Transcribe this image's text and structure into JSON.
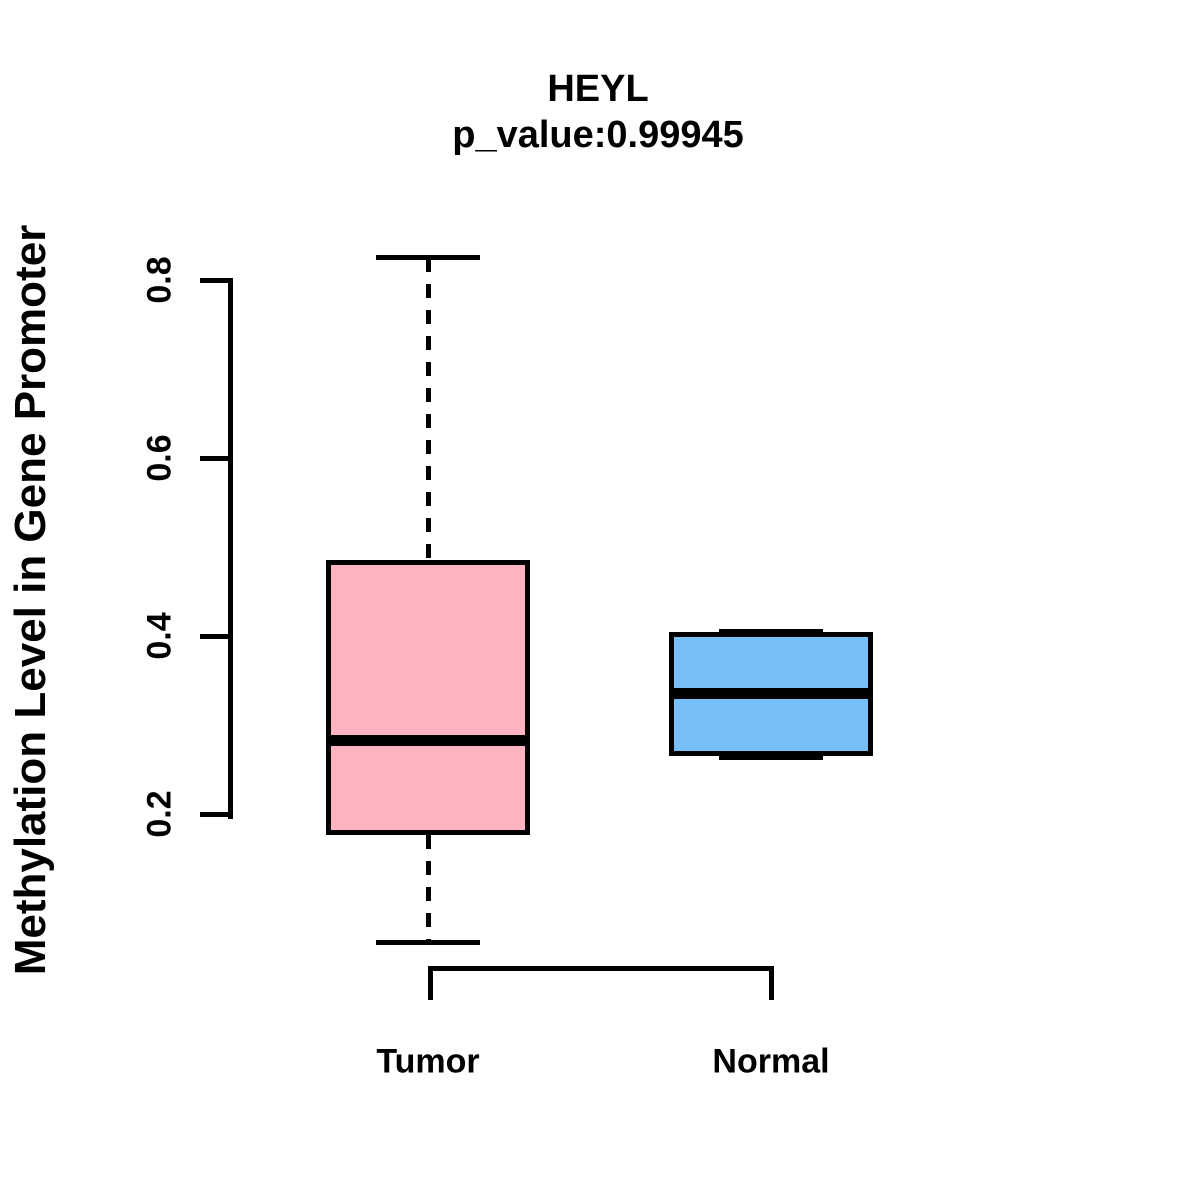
{
  "title": "HEYL",
  "subtitle": "p_value:0.99945",
  "y_axis": {
    "label": "Methylation Level in Gene Promoter",
    "ticks": [
      "0.2",
      "0.4",
      "0.6",
      "0.8"
    ]
  },
  "x_axis": {
    "labels": [
      "Tumor",
      "Normal"
    ]
  },
  "chart_data": {
    "type": "boxplot",
    "title": "HEYL",
    "subtitle": "p_value:0.99945",
    "p_value": 0.99945,
    "gene": "HEYL",
    "ylabel": "Methylation Level in Gene Promoter",
    "categories": [
      "Tumor",
      "Normal"
    ],
    "y_ticks": [
      0.2,
      0.4,
      0.6,
      0.8
    ],
    "ylim": [
      0.03,
      0.86
    ],
    "grid": false,
    "legend": "none",
    "series": [
      {
        "name": "Tumor",
        "color": "#FFB3C1",
        "lower_whisker": 0.056,
        "q1": 0.176,
        "median": 0.283,
        "q3": 0.485,
        "upper_whisker": 0.825
      },
      {
        "name": "Normal",
        "color": "#76BFF8",
        "lower_whisker": 0.264,
        "q1": 0.265,
        "median": 0.335,
        "q3": 0.404,
        "upper_whisker": 0.405
      }
    ]
  }
}
